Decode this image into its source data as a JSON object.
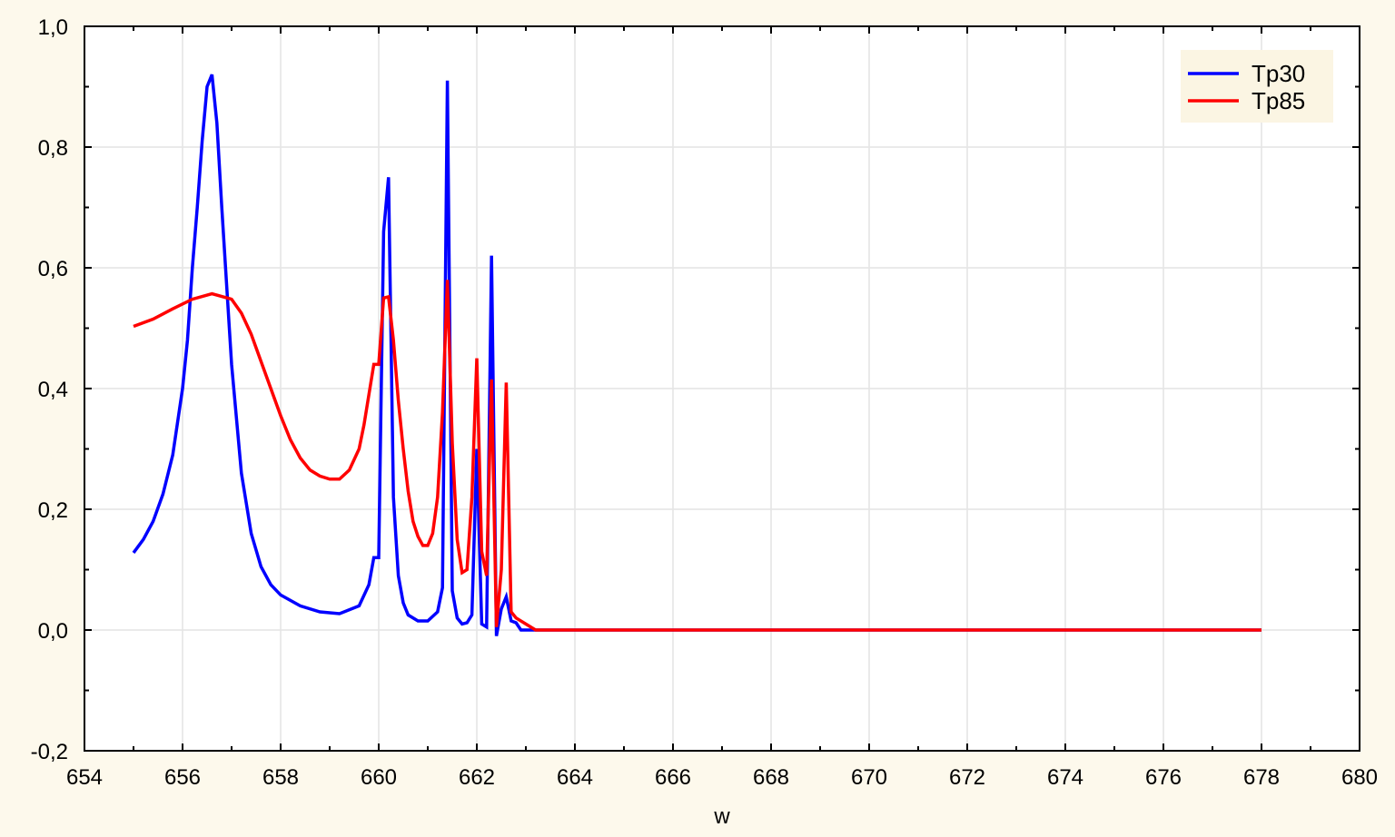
{
  "chart_data": {
    "type": "line",
    "title": "",
    "xlabel": "w",
    "ylabel": "",
    "xlim": [
      654,
      680
    ],
    "ylim": [
      -0.2,
      1.0
    ],
    "grid": true,
    "legend_position": "top-right",
    "x_ticks": [
      654,
      656,
      658,
      660,
      662,
      664,
      666,
      668,
      670,
      672,
      674,
      676,
      678,
      680
    ],
    "x_tick_labels": [
      "654",
      "656",
      "658",
      "660",
      "662",
      "664",
      "666",
      "668",
      "670",
      "672",
      "674",
      "676",
      "678",
      "680"
    ],
    "y_ticks": [
      -0.2,
      0,
      0.2,
      0.4,
      0.6,
      0.8,
      1.0
    ],
    "y_tick_labels": [
      "-0,2",
      "0,0",
      "0,2",
      "0,4",
      "0,6",
      "0,8",
      "1,0"
    ],
    "colors": {
      "background": "#fdf9ec",
      "plot": "#ffffff",
      "grid": "#e4e4e4",
      "legend_bg": "#fbf5e3"
    },
    "series": [
      {
        "name": "Tp30",
        "color": "#0000ff",
        "x": [
          655.0,
          655.2,
          655.4,
          655.6,
          655.8,
          656.0,
          656.1,
          656.2,
          656.3,
          656.4,
          656.5,
          656.6,
          656.7,
          656.8,
          656.9,
          657.0,
          657.2,
          657.4,
          657.6,
          657.8,
          658.0,
          658.4,
          658.8,
          659.2,
          659.6,
          659.8,
          659.9,
          660.0,
          660.1,
          660.2,
          660.3,
          660.4,
          660.5,
          660.6,
          660.8,
          661.0,
          661.2,
          661.3,
          661.4,
          661.5,
          661.6,
          661.7,
          661.8,
          661.9,
          662.0,
          662.1,
          662.2,
          662.3,
          662.4,
          662.5,
          662.6,
          662.7,
          662.8,
          662.9,
          663.0,
          678.0
        ],
        "y": [
          0.128,
          0.15,
          0.18,
          0.225,
          0.29,
          0.4,
          0.48,
          0.6,
          0.7,
          0.81,
          0.9,
          0.92,
          0.84,
          0.7,
          0.57,
          0.44,
          0.26,
          0.16,
          0.105,
          0.075,
          0.058,
          0.04,
          0.03,
          0.027,
          0.04,
          0.075,
          0.12,
          0.12,
          0.66,
          0.75,
          0.22,
          0.09,
          0.045,
          0.025,
          0.015,
          0.015,
          0.03,
          0.07,
          0.91,
          0.065,
          0.02,
          0.01,
          0.012,
          0.025,
          0.3,
          0.01,
          0.005,
          0.62,
          -0.01,
          0.035,
          0.055,
          0.015,
          0.012,
          0.0,
          0.0,
          0.0
        ]
      },
      {
        "name": "Tp85",
        "color": "#ff0000",
        "x": [
          655.0,
          655.4,
          655.8,
          656.2,
          656.6,
          657.0,
          657.2,
          657.4,
          657.6,
          657.8,
          658.0,
          658.2,
          658.4,
          658.6,
          658.8,
          659.0,
          659.2,
          659.4,
          659.6,
          659.7,
          659.8,
          659.9,
          660.0,
          660.1,
          660.2,
          660.3,
          660.4,
          660.5,
          660.6,
          660.7,
          660.8,
          660.9,
          661.0,
          661.1,
          661.2,
          661.3,
          661.4,
          661.5,
          661.6,
          661.7,
          661.8,
          661.9,
          662.0,
          662.1,
          662.2,
          662.3,
          662.4,
          662.5,
          662.6,
          662.7,
          662.8,
          663.0,
          663.2,
          678.0
        ],
        "y": [
          0.503,
          0.515,
          0.532,
          0.548,
          0.557,
          0.548,
          0.525,
          0.49,
          0.445,
          0.4,
          0.355,
          0.315,
          0.285,
          0.265,
          0.255,
          0.25,
          0.25,
          0.265,
          0.3,
          0.34,
          0.39,
          0.44,
          0.44,
          0.55,
          0.552,
          0.48,
          0.38,
          0.3,
          0.23,
          0.18,
          0.155,
          0.14,
          0.14,
          0.16,
          0.22,
          0.36,
          0.58,
          0.31,
          0.15,
          0.095,
          0.1,
          0.22,
          0.45,
          0.13,
          0.09,
          0.415,
          0.005,
          0.1,
          0.41,
          0.03,
          0.02,
          0.01,
          0.0,
          0.0
        ]
      }
    ]
  }
}
